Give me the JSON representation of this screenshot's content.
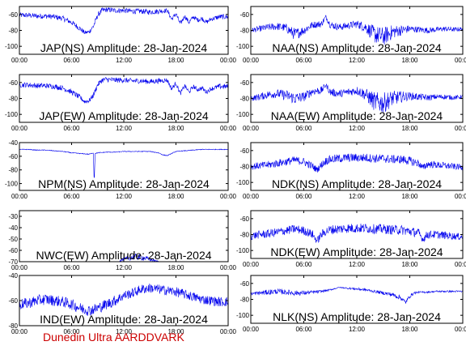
{
  "footer_text": "Dunedin Ultra AARDDVARK",
  "colors": {
    "trace": "#0000ee",
    "axis": "#000000",
    "footer": "#cc0000"
  },
  "chart_data": [
    {
      "type": "line",
      "title": "JAP(NS) Amplitude: 28-Jan-2024",
      "x_ticks": [
        "00:00",
        "06:00",
        "12:00",
        "18:00",
        "00:00"
      ],
      "y_ticks": [
        -100,
        -80,
        -60
      ],
      "ylim": [
        -110,
        -50
      ],
      "xlim": [
        0,
        24
      ],
      "series": [
        {
          "x": [
            0,
            1,
            2,
            3,
            4,
            5,
            6,
            7,
            7.5,
            8,
            8.5,
            9,
            9.5,
            10,
            11,
            12,
            13,
            14,
            15,
            16,
            17,
            17.5,
            18,
            18.5,
            19,
            19.5,
            20,
            20.5,
            21,
            21.5,
            22,
            23,
            24
          ],
          "y": [
            -61,
            -61,
            -62,
            -62,
            -63,
            -65,
            -70,
            -78,
            -83,
            -82,
            -75,
            -61,
            -55,
            -54,
            -55,
            -55,
            -56,
            -56,
            -57,
            -56,
            -55,
            -66,
            -59,
            -72,
            -62,
            -70,
            -63,
            -67,
            -65,
            -70,
            -66,
            -63,
            -63
          ],
          "band": [
            6,
            6,
            6,
            6,
            6,
            6,
            6,
            6,
            5,
            5,
            6,
            6,
            6,
            6,
            6,
            6,
            6,
            6,
            6,
            6,
            5,
            5,
            5,
            5,
            5,
            5,
            5,
            5,
            5,
            5,
            5,
            6,
            6
          ]
        }
      ]
    },
    {
      "type": "line",
      "title": "NAA(NS) Amplitude: 28-Jan-2024",
      "x_ticks": [
        "00:00",
        "06:00",
        "12:00",
        "18:00",
        "00:00"
      ],
      "y_ticks": [
        -100,
        -80,
        -60
      ],
      "ylim": [
        -110,
        -50
      ],
      "xlim": [
        0,
        24
      ],
      "series": [
        {
          "x": [
            0,
            1,
            2,
            3,
            4,
            5,
            6,
            7,
            8,
            8.5,
            9,
            10,
            11,
            12,
            13,
            14,
            15,
            16,
            17,
            18,
            19,
            20,
            21,
            22,
            23,
            24
          ],
          "y": [
            -80,
            -78,
            -76,
            -75,
            -77,
            -85,
            -80,
            -73,
            -72,
            -63,
            -73,
            -76,
            -74,
            -72,
            -76,
            -85,
            -88,
            -82,
            -80,
            -78,
            -79,
            -80,
            -79,
            -78,
            -79,
            -78
          ],
          "band": [
            5,
            7,
            8,
            9,
            10,
            14,
            10,
            8,
            8,
            5,
            8,
            8,
            8,
            9,
            12,
            20,
            22,
            16,
            12,
            8,
            7,
            7,
            6,
            6,
            5,
            5
          ]
        }
      ]
    },
    {
      "type": "line",
      "title": "JAP(EW) Amplitude: 28-Jan-2024",
      "x_ticks": [
        "00:00",
        "06:00",
        "12:00",
        "18:00",
        "00:00"
      ],
      "y_ticks": [
        -100,
        -80,
        -60
      ],
      "ylim": [
        -110,
        -50
      ],
      "xlim": [
        0,
        24
      ],
      "series": [
        {
          "x": [
            0,
            1,
            2,
            3,
            4,
            5,
            6,
            7,
            7.5,
            8,
            8.5,
            9,
            9.5,
            10,
            11,
            12,
            13,
            14,
            15,
            16,
            17,
            17.5,
            18,
            18.5,
            19,
            19.5,
            20,
            20.5,
            21,
            21.5,
            22,
            23,
            24
          ],
          "y": [
            -63,
            -63,
            -64,
            -64,
            -65,
            -67,
            -72,
            -79,
            -84,
            -83,
            -76,
            -63,
            -57,
            -56,
            -57,
            -57,
            -58,
            -58,
            -59,
            -58,
            -57,
            -68,
            -61,
            -74,
            -64,
            -72,
            -65,
            -69,
            -67,
            -72,
            -68,
            -65,
            -65
          ],
          "band": [
            6,
            6,
            6,
            6,
            6,
            6,
            6,
            6,
            5,
            5,
            6,
            6,
            6,
            6,
            6,
            6,
            6,
            6,
            6,
            6,
            5,
            5,
            5,
            5,
            5,
            5,
            5,
            5,
            5,
            5,
            5,
            6,
            6
          ]
        }
      ]
    },
    {
      "type": "line",
      "title": "NAA(EW) Amplitude: 28-Jan-2024",
      "x_ticks": [
        "00:00",
        "06:00",
        "12:00",
        "18:00",
        "00:00"
      ],
      "y_ticks": [
        -100,
        -80,
        -60
      ],
      "ylim": [
        -110,
        -50
      ],
      "xlim": [
        0,
        24
      ],
      "series": [
        {
          "x": [
            0,
            1,
            2,
            3,
            4,
            5,
            6,
            7,
            8,
            8.5,
            9,
            10,
            11,
            12,
            13,
            14,
            15,
            16,
            17,
            18,
            19,
            20,
            21,
            22,
            23,
            24
          ],
          "y": [
            -80,
            -78,
            -75,
            -74,
            -76,
            -80,
            -78,
            -71,
            -70,
            -63,
            -72,
            -74,
            -72,
            -70,
            -75,
            -84,
            -86,
            -80,
            -78,
            -77,
            -78,
            -79,
            -78,
            -78,
            -79,
            -78
          ],
          "band": [
            6,
            8,
            9,
            10,
            12,
            14,
            11,
            9,
            9,
            5,
            9,
            9,
            9,
            10,
            14,
            22,
            24,
            18,
            13,
            9,
            8,
            7,
            6,
            6,
            5,
            5
          ]
        }
      ]
    },
    {
      "type": "line",
      "title": "NPM(NS) Amplitude: 28-Jan-2024",
      "x_ticks": [
        "00:00",
        "06:00",
        "12:00",
        "18:00",
        "00:00"
      ],
      "y_ticks": [
        -100,
        -80,
        -60,
        -40
      ],
      "ylim": [
        -110,
        -40
      ],
      "xlim": [
        0,
        24
      ],
      "series": [
        {
          "x": [
            0,
            1,
            2,
            3,
            4,
            5,
            6,
            7,
            8,
            8.5,
            8.6,
            8.7,
            9,
            10,
            11,
            12,
            13,
            14,
            15,
            16,
            16.5,
            17,
            17.5,
            18,
            19,
            20,
            21,
            22,
            23,
            24
          ],
          "y": [
            -50,
            -50,
            -51,
            -51,
            -52,
            -53,
            -55,
            -56,
            -57,
            -55,
            -100,
            -56,
            -55,
            -54,
            -54,
            -53,
            -53,
            -53,
            -53,
            -55,
            -58,
            -59,
            -56,
            -53,
            -52,
            -51,
            -50,
            -50,
            -50,
            -50
          ],
          "band": [
            1,
            1,
            1,
            1,
            1,
            1,
            1,
            1,
            1,
            1,
            1,
            1,
            1,
            1,
            1,
            1,
            1,
            1,
            1,
            1,
            1,
            1,
            1,
            1,
            1,
            1,
            1,
            1,
            1,
            1
          ]
        }
      ]
    },
    {
      "type": "line",
      "title": "NDK(NS) Amplitude: 28-Jan-2024",
      "x_ticks": [
        "00:00",
        "06:00",
        "12:00",
        "18:00",
        "00:00"
      ],
      "y_ticks": [
        -100,
        -80,
        -60
      ],
      "ylim": [
        -110,
        -50
      ],
      "xlim": [
        0,
        24
      ],
      "series": [
        {
          "x": [
            0,
            1,
            2,
            3,
            4,
            5,
            6,
            7,
            7.5,
            8,
            8.5,
            9,
            10,
            11,
            12,
            13,
            14,
            15,
            16,
            17,
            18,
            19,
            19.5,
            20,
            21,
            22,
            23,
            24
          ],
          "y": [
            -80,
            -79,
            -78,
            -76,
            -74,
            -72,
            -74,
            -80,
            -84,
            -78,
            -73,
            -71,
            -70,
            -69,
            -69,
            -69,
            -70,
            -70,
            -71,
            -71,
            -73,
            -76,
            -82,
            -77,
            -78,
            -79,
            -80,
            -81
          ],
          "band": [
            8,
            8,
            9,
            9,
            9,
            9,
            9,
            9,
            7,
            9,
            9,
            10,
            10,
            10,
            10,
            10,
            10,
            10,
            10,
            10,
            10,
            9,
            8,
            9,
            8,
            8,
            7,
            7
          ]
        }
      ]
    },
    {
      "type": "line",
      "title": "NWC(EW) Amplitude: 28-Jan-2024",
      "x_ticks": [
        "00:00",
        "06:00",
        "12:00",
        "18:00",
        "00:00"
      ],
      "y_ticks": [
        -70,
        -60,
        -50,
        -40,
        -30
      ],
      "ylim": [
        -70,
        -25
      ],
      "xlim": [
        0,
        24
      ],
      "series": [
        {
          "x": [
            11.5,
            12,
            12.5,
            13,
            13.5,
            14,
            14.5,
            15,
            15.5,
            16
          ],
          "y": [
            -69,
            -68,
            -67,
            -66,
            -66,
            -66,
            -67,
            -68,
            -69,
            -70
          ],
          "band": [
            2,
            3,
            4,
            5,
            5,
            5,
            4,
            3,
            2,
            1
          ]
        }
      ]
    },
    {
      "type": "line",
      "title": "NDK(EW) Amplitude: 28-Jan-2024",
      "x_ticks": [
        "00:00",
        "06:00",
        "12:00",
        "18:00",
        "00:00"
      ],
      "y_ticks": [
        -100,
        -80,
        -60
      ],
      "ylim": [
        -110,
        -50
      ],
      "xlim": [
        0,
        24
      ],
      "series": [
        {
          "x": [
            0,
            1,
            2,
            3,
            4,
            5,
            6,
            7,
            7.5,
            8,
            8.5,
            9,
            10,
            11,
            12,
            13,
            14,
            15,
            16,
            17,
            18,
            19,
            19.5,
            20,
            21,
            22,
            23,
            24
          ],
          "y": [
            -82,
            -80,
            -79,
            -77,
            -75,
            -73,
            -75,
            -80,
            -88,
            -80,
            -76,
            -74,
            -73,
            -72,
            -72,
            -72,
            -73,
            -73,
            -74,
            -74,
            -76,
            -78,
            -86,
            -80,
            -80,
            -81,
            -82,
            -83
          ],
          "band": [
            9,
            9,
            10,
            10,
            10,
            10,
            10,
            10,
            8,
            10,
            10,
            11,
            11,
            11,
            11,
            11,
            11,
            11,
            11,
            11,
            11,
            10,
            8,
            10,
            9,
            9,
            8,
            8
          ]
        }
      ]
    },
    {
      "type": "line",
      "title": "IND(EW) Amplitude: 28-Jan-2024",
      "x_ticks": [
        "00:00",
        "06:00",
        "12:00",
        "18:00",
        "00:00"
      ],
      "y_ticks": [
        -80,
        -60,
        -40
      ],
      "ylim": [
        -80,
        -40
      ],
      "xlim": [
        0,
        24
      ],
      "series": [
        {
          "x": [
            0,
            1,
            2,
            3,
            4,
            5,
            6,
            7,
            8,
            9,
            10,
            11,
            12,
            13,
            14,
            15,
            16,
            17,
            18,
            19,
            20,
            21,
            22,
            23,
            24
          ],
          "y": [
            -63,
            -62,
            -60,
            -59,
            -60,
            -61,
            -63,
            -66,
            -68,
            -66,
            -63,
            -60,
            -56,
            -54,
            -51,
            -50,
            -51,
            -52,
            -53,
            -55,
            -57,
            -59,
            -60,
            -61,
            -61
          ],
          "band": [
            8,
            8,
            8,
            8,
            8,
            8,
            8,
            8,
            8,
            8,
            8,
            8,
            7,
            7,
            7,
            7,
            7,
            7,
            7,
            7,
            7,
            7,
            7,
            7,
            7
          ]
        }
      ]
    },
    {
      "type": "line",
      "title": "NLK(NS) Amplitude: 28-Jan-2024",
      "x_ticks": [
        "00:00",
        "06:00",
        "12:00",
        "18:00",
        "00:00"
      ],
      "y_ticks": [
        -100,
        -80,
        -60
      ],
      "ylim": [
        -110,
        -50
      ],
      "xlim": [
        0,
        24
      ],
      "series": [
        {
          "x": [
            0,
            1,
            2,
            3,
            4,
            5,
            6,
            7,
            8,
            9,
            10,
            11,
            12,
            13,
            14,
            15,
            16,
            17,
            17.5,
            18,
            18.5,
            19,
            20,
            21,
            22,
            23,
            24
          ],
          "y": [
            -73,
            -72,
            -71,
            -70,
            -71,
            -72,
            -72,
            -71,
            -70,
            -68,
            -65,
            -66,
            -67,
            -68,
            -70,
            -72,
            -74,
            -78,
            -84,
            -76,
            -72,
            -71,
            -71,
            -70,
            -70,
            -70,
            -70
          ],
          "band": [
            3,
            5,
            6,
            6,
            6,
            6,
            5,
            4,
            3,
            2,
            1,
            2,
            3,
            3,
            3,
            4,
            5,
            6,
            5,
            4,
            3,
            2,
            2,
            2,
            2,
            2,
            2
          ]
        }
      ]
    }
  ]
}
